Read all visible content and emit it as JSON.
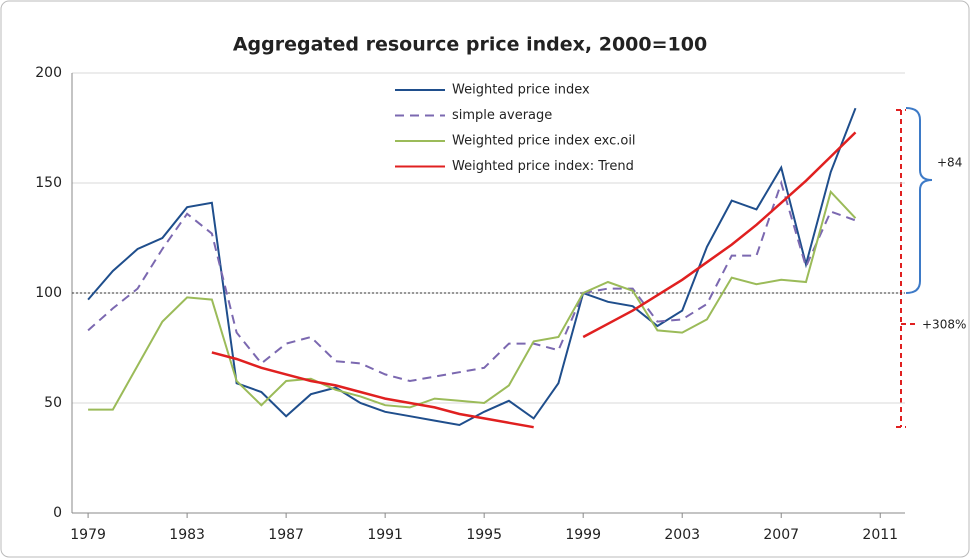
{
  "chart_data": {
    "type": "line",
    "title": "Aggregated resource price index, 2000=100",
    "x": [
      1979,
      1980,
      1981,
      1982,
      1983,
      1984,
      1985,
      1986,
      1987,
      1988,
      1989,
      1990,
      1991,
      1992,
      1993,
      1994,
      1995,
      1996,
      1997,
      1998,
      1999,
      2000,
      2001,
      2002,
      2003,
      2004,
      2005,
      2006,
      2007,
      2008,
      2009,
      2010
    ],
    "series": [
      {
        "name": "Weighted price index",
        "color": "#1f4e8c",
        "dash": false,
        "values": [
          97,
          110,
          120,
          125,
          139,
          141,
          59,
          55,
          44,
          54,
          57,
          50,
          46,
          44,
          42,
          40,
          46,
          51,
          43,
          59,
          100,
          96,
          94,
          85,
          92,
          121,
          142,
          138,
          157,
          113,
          155,
          184
        ]
      },
      {
        "name": "simple average",
        "color": "#7b68b0",
        "dash": true,
        "values": [
          83,
          93,
          102,
          120,
          136,
          127,
          82,
          68,
          77,
          80,
          69,
          68,
          63,
          60,
          62,
          64,
          66,
          77,
          77,
          74,
          100,
          102,
          102,
          87,
          88,
          95,
          117,
          117,
          150,
          112,
          137,
          133
        ]
      },
      {
        "name": "Weighted price index exc.oil",
        "color": "#9bbb59",
        "dash": false,
        "values": [
          47,
          47,
          67,
          87,
          98,
          97,
          60,
          49,
          60,
          61,
          56,
          53,
          49,
          48,
          52,
          51,
          50,
          58,
          78,
          80,
          100,
          105,
          101,
          83,
          82,
          88,
          107,
          104,
          106,
          105,
          146,
          134
        ]
      },
      {
        "name": "Weighted price index: Trend",
        "color": "#e02020",
        "dash": false,
        "values": [
          null,
          null,
          null,
          null,
          null,
          73,
          70,
          66,
          63,
          60,
          58,
          55,
          52,
          50,
          48,
          45,
          43,
          41,
          39,
          null,
          80,
          86,
          92,
          99,
          106,
          114,
          122,
          131,
          141,
          151,
          162,
          173
        ]
      }
    ],
    "xlim": [
      1978.35,
      2012.0
    ],
    "xticks": [
      1979,
      1983,
      1987,
      1991,
      1995,
      1999,
      2003,
      2007,
      2011
    ],
    "ylim": [
      0,
      200
    ],
    "yticks": [
      0,
      50,
      100,
      150,
      200
    ],
    "grid": true,
    "reference_line": 100,
    "legend": "top",
    "annotations": [
      "+84",
      "+308%"
    ]
  }
}
